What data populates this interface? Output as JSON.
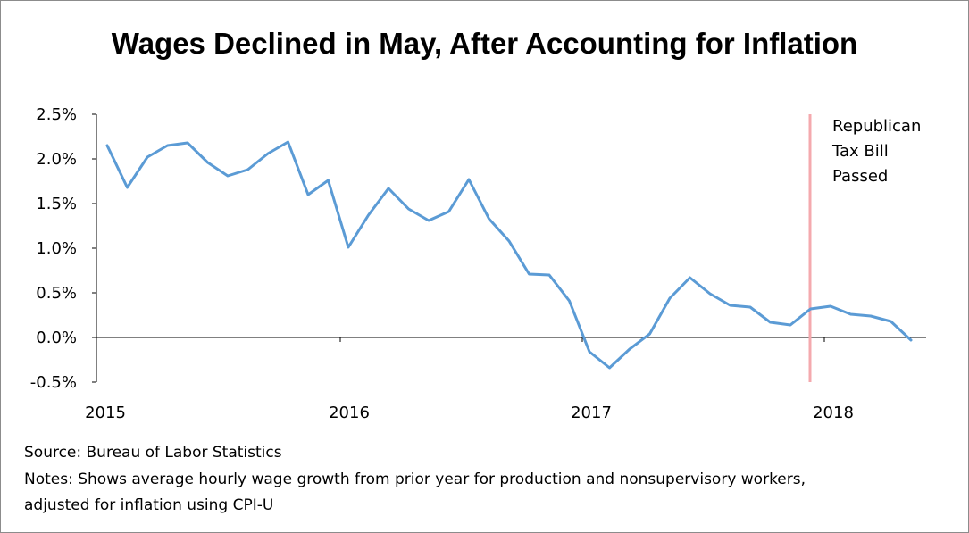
{
  "chart_data": {
    "type": "line",
    "title": "Wages Declined in May, After Accounting for Inflation",
    "xlabel": "",
    "ylabel": "",
    "ylim": [
      -0.5,
      2.5
    ],
    "y_ticks": [
      "2.5%",
      "2.0%",
      "1.5%",
      "1.0%",
      "0.5%",
      "0.0%",
      "-0.5%"
    ],
    "y_tick_values": [
      2.5,
      2.0,
      1.5,
      1.0,
      0.5,
      0.0,
      -0.5
    ],
    "x_ticks": [
      "2015",
      "2016",
      "2017",
      "2018"
    ],
    "grid": false,
    "series": [
      {
        "color": "#5b9bd5",
        "x": [
          "2015-01",
          "2015-02",
          "2015-03",
          "2015-04",
          "2015-05",
          "2015-06",
          "2015-07",
          "2015-08",
          "2015-09",
          "2015-10",
          "2015-11",
          "2015-12",
          "2016-01",
          "2016-02",
          "2016-03",
          "2016-04",
          "2016-05",
          "2016-06",
          "2016-07",
          "2016-08",
          "2016-09",
          "2016-10",
          "2016-11",
          "2016-12",
          "2017-01",
          "2017-02",
          "2017-03",
          "2017-04",
          "2017-05",
          "2017-06",
          "2017-07",
          "2017-08",
          "2017-09",
          "2017-10",
          "2017-11",
          "2017-12",
          "2018-01",
          "2018-02",
          "2018-03",
          "2018-04",
          "2018-05"
        ],
        "values": [
          2.15,
          1.68,
          2.02,
          2.15,
          2.18,
          1.96,
          1.81,
          1.88,
          2.06,
          2.19,
          1.6,
          1.76,
          1.01,
          1.37,
          1.67,
          1.44,
          1.31,
          1.41,
          1.77,
          1.33,
          1.08,
          0.71,
          0.7,
          0.41,
          -0.16,
          -0.34,
          -0.13,
          0.04,
          0.44,
          0.67,
          0.49,
          0.36,
          0.34,
          0.17,
          0.14,
          0.32,
          0.35,
          0.26,
          0.24,
          0.18,
          -0.03
        ]
      }
    ],
    "annotation": {
      "lines": [
        "Republican",
        "Tax Bill",
        "Passed"
      ],
      "at": "2017-12",
      "color": "#f4a9ae"
    }
  },
  "footer": {
    "source": "Source: Bureau of Labor Statistics",
    "notes_line1": "Notes: Shows average hourly wage growth from prior year for production and nonsupervisory workers,",
    "notes_line2": "adjusted for inflation using CPI-U"
  }
}
